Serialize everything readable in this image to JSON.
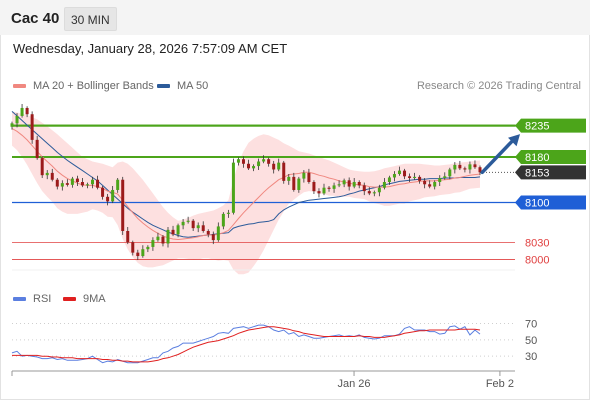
{
  "header": {
    "title": "Cac 40",
    "interval": "30 MIN"
  },
  "datetime": "Wednesday, January 28, 2026 7:57:09 AM CET",
  "legend": [
    {
      "label": "MA 20 + Bollinger Bands",
      "color": "#f08880"
    },
    {
      "label": "MA 50",
      "color": "#2c5b9a"
    }
  ],
  "credit": "Research © 2026 Trading Central",
  "rsi_legend": [
    {
      "label": "RSI",
      "color": "#5b7fe0"
    },
    {
      "label": "9MA",
      "color": "#e02020"
    }
  ],
  "colors": {
    "resistance": "#4ca51a",
    "support": "#1f5fd6",
    "extreme": "#e04040",
    "current": "#333333",
    "arrow": "#2c5b9a",
    "band": "#fde0e0",
    "up": "#4ca51a",
    "down": "#9c1b1b"
  },
  "chart_data": [
    {
      "type": "candlestick",
      "ylim": [
        7985,
        8280
      ],
      "xlim": [
        0,
        100
      ],
      "x_ticks": [
        {
          "x": 68,
          "label": "Jan 26"
        },
        {
          "x": 97,
          "label": "Feb 2"
        }
      ],
      "levels": [
        {
          "value": 8235,
          "label": "8235",
          "kind": "resistance"
        },
        {
          "value": 8180,
          "label": "8180",
          "kind": "resistance"
        },
        {
          "value": 8153,
          "label": "8153",
          "kind": "current"
        },
        {
          "value": 8100,
          "label": "8100",
          "kind": "support"
        },
        {
          "value": 8030,
          "label": "8030",
          "kind": "extreme"
        },
        {
          "value": 8000,
          "label": "8000",
          "kind": "extreme"
        }
      ],
      "forecast_arrow": {
        "from": [
          93.5,
          8153
        ],
        "to": [
          101,
          8220
        ]
      },
      "closes": [
        8239,
        8252,
        8266,
        8255,
        8210,
        8178,
        8148,
        8152,
        8140,
        8128,
        8134,
        8131,
        8142,
        8136,
        8130,
        8132,
        8140,
        8126,
        8110,
        8102,
        8122,
        8140,
        8050,
        8030,
        8012,
        8006,
        8018,
        8022,
        8034,
        8040,
        8028,
        8052,
        8044,
        8060,
        8066,
        8068,
        8055,
        8060,
        8050,
        8044,
        8034,
        8058,
        8080,
        8082,
        8170,
        8176,
        8168,
        8160,
        8164,
        8172,
        8176,
        8168,
        8158,
        8170,
        8138,
        8145,
        8122,
        8142,
        8152,
        8136,
        8120,
        8116,
        8126,
        8124,
        8130,
        8132,
        8139,
        8128,
        8136,
        8130,
        8120,
        8116,
        8118,
        8126,
        8136,
        8144,
        8150,
        8156,
        8146,
        8143,
        8145,
        8138,
        8132,
        8128,
        8136,
        8143,
        8146,
        8158,
        8166,
        8160,
        8158,
        8167,
        8162,
        8153
      ],
      "ma20": [
        8230,
        8225,
        8218,
        8210,
        8200,
        8190,
        8180,
        8172,
        8164,
        8155,
        8148,
        8142,
        8138,
        8134,
        8131,
        8130,
        8130,
        8128,
        8125,
        8120,
        8118,
        8115,
        8104,
        8093,
        8082,
        8072,
        8064,
        8057,
        8051,
        8046,
        8041,
        8038,
        8036,
        8035,
        8036,
        8037,
        8038,
        8040,
        8042,
        8043,
        8043,
        8044,
        8047,
        8051,
        8061,
        8072,
        8082,
        8091,
        8100,
        8109,
        8118,
        8126,
        8133,
        8140,
        8144,
        8149,
        8150,
        8151,
        8153,
        8153,
        8151,
        8148,
        8146,
        8143,
        8141,
        8138,
        8136,
        8134,
        8132,
        8131,
        8130,
        8128,
        8127,
        8127,
        8127,
        8128,
        8130,
        8132,
        8133,
        8135,
        8136,
        8137,
        8138,
        8138,
        8138,
        8139,
        8140,
        8141,
        8143,
        8144,
        8146,
        8148,
        8149,
        8150
      ],
      "bb_upper": [
        8260,
        8258,
        8256,
        8254,
        8250,
        8246,
        8240,
        8234,
        8227,
        8220,
        8212,
        8204,
        8196,
        8188,
        8180,
        8176,
        8172,
        8170,
        8168,
        8165,
        8162,
        8170,
        8172,
        8168,
        8160,
        8150,
        8140,
        8128,
        8116,
        8104,
        8092,
        8082,
        8074,
        8068,
        8070,
        8073,
        8077,
        8080,
        8082,
        8084,
        8086,
        8090,
        8095,
        8104,
        8140,
        8170,
        8190,
        8205,
        8212,
        8217,
        8220,
        8218,
        8214,
        8210,
        8204,
        8200,
        8195,
        8190,
        8188,
        8186,
        8183,
        8180,
        8177,
        8174,
        8170,
        8166,
        8162,
        8158,
        8156,
        8155,
        8154,
        8154,
        8155,
        8157,
        8160,
        8162,
        8164,
        8166,
        8168,
        8168,
        8168,
        8168,
        8167,
        8166,
        8165,
        8165,
        8166,
        8167,
        8169,
        8170,
        8171,
        8172,
        8173,
        8174
      ],
      "bb_lower": [
        8200,
        8192,
        8180,
        8166,
        8150,
        8134,
        8120,
        8110,
        8101,
        8090,
        8084,
        8080,
        8080,
        8080,
        8082,
        8084,
        8088,
        8086,
        8082,
        8075,
        8074,
        8060,
        8036,
        8018,
        8004,
        7994,
        7988,
        7986,
        7986,
        7988,
        7990,
        7994,
        7998,
        8002,
        8002,
        8001,
        7999,
        8000,
        8002,
        8002,
        8000,
        7998,
        7999,
        7998,
        7982,
        7974,
        7974,
        7977,
        7988,
        8001,
        8016,
        8034,
        8052,
        8070,
        8084,
        8098,
        8105,
        8112,
        8118,
        8120,
        8119,
        8116,
        8115,
        8112,
        8112,
        8110,
        8110,
        8110,
        8108,
        8107,
        8106,
        8102,
        8099,
        8097,
        8094,
        8094,
        8096,
        8098,
        8098,
        8102,
        8104,
        8106,
        8109,
        8110,
        8111,
        8113,
        8114,
        8115,
        8117,
        8118,
        8121,
        8124,
        8125,
        8126
      ],
      "ma50": [
        8260,
        8252,
        8244,
        8236,
        8228,
        8220,
        8212,
        8204,
        8196,
        8188,
        8181,
        8174,
        8168,
        8162,
        8156,
        8150,
        8144,
        8138,
        8130,
        8122,
        8114,
        8106,
        8098,
        8090,
        8083,
        8077,
        8071,
        8065,
        8060,
        8056,
        8052,
        8048,
        8045,
        8042,
        8040,
        8039,
        8040,
        8041,
        8042,
        8043,
        8044,
        8045,
        8046,
        8047,
        8055,
        8058,
        8060,
        8062,
        8063,
        8065,
        8066,
        8067,
        8070,
        8080,
        8087,
        8092,
        8096,
        8100,
        8102,
        8104,
        8105,
        8106,
        8107,
        8108,
        8109,
        8110,
        8112,
        8115,
        8117,
        8120,
        8122,
        8124,
        8126,
        8128,
        8131,
        8133,
        8135,
        8137,
        8138,
        8139,
        8140,
        8141,
        8141,
        8142,
        8142,
        8142,
        8143,
        8143,
        8143,
        8144,
        8144,
        8144,
        8144,
        8145
      ]
    },
    {
      "type": "line",
      "name_series": [
        "RSI",
        "9MA"
      ],
      "ylim": [
        18,
        84
      ],
      "y_ticks": [
        70,
        50,
        30
      ],
      "rsi": [
        34,
        36,
        30,
        31,
        30,
        29,
        27,
        27,
        28,
        26,
        27,
        25,
        25,
        25,
        26,
        27,
        30,
        26,
        22,
        24,
        23,
        26,
        24,
        22,
        22,
        22,
        24,
        26,
        28,
        28,
        34,
        36,
        40,
        42,
        46,
        46,
        46,
        48,
        50,
        52,
        54,
        58,
        59,
        58,
        64,
        65,
        66,
        64,
        66,
        68,
        68,
        66,
        62,
        60,
        62,
        57,
        59,
        54,
        56,
        54,
        52,
        52,
        53,
        54,
        55,
        56,
        54,
        55,
        54,
        56,
        53,
        52,
        51,
        52,
        55,
        55,
        55,
        57,
        64,
        66,
        62,
        62,
        62,
        60,
        60,
        57,
        58,
        66,
        67,
        63,
        66,
        56,
        62,
        57
      ],
      "ma9": [
        31,
        31,
        31,
        31,
        31,
        31,
        30,
        30,
        29,
        29,
        28,
        28,
        28,
        27,
        27,
        27,
        27,
        27,
        26,
        26,
        25,
        25,
        24,
        24,
        23,
        23,
        23,
        23,
        24,
        25,
        27,
        28,
        30,
        32,
        35,
        38,
        41,
        43,
        45,
        47,
        48,
        49,
        51,
        53,
        55,
        58,
        60,
        62,
        63,
        64,
        65,
        66,
        66,
        65,
        64,
        63,
        61,
        60,
        58,
        57,
        56,
        55,
        54,
        54,
        54,
        54,
        54,
        54,
        54,
        55,
        54,
        54,
        53,
        53,
        53,
        54,
        55,
        56,
        58,
        59,
        60,
        61,
        61,
        62,
        62,
        62,
        62,
        62,
        62,
        63,
        63,
        63,
        63,
        62
      ]
    }
  ]
}
